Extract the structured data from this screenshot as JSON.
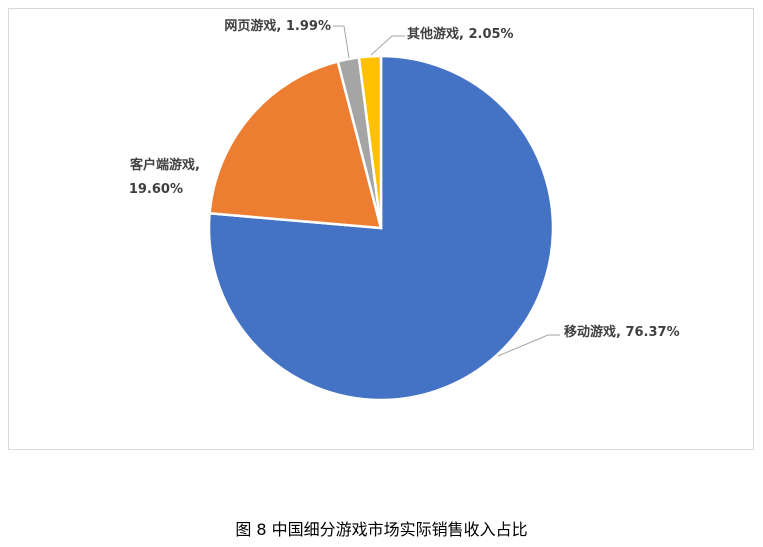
{
  "chart_data": {
    "type": "pie",
    "title": "",
    "slices": [
      {
        "label": "移动游戏",
        "value": 76.37,
        "display": "移动游戏, 76.37%",
        "color": "#4472c4"
      },
      {
        "label": "客户端游戏",
        "value": 19.6,
        "display": "客户端游戏,|19.60%",
        "color": "#ed7d31"
      },
      {
        "label": "网页游戏",
        "value": 1.99,
        "display": "网页游戏, 1.99%",
        "color": "#a5a5a5"
      },
      {
        "label": "其他游戏",
        "value": 2.05,
        "display": "其他游戏, 2.05%",
        "color": "#ffc000"
      }
    ],
    "start_angle": "12 o'clock",
    "direction": "clockwise",
    "legend": "none",
    "data_labels": "outside with leader lines"
  },
  "caption": "图 8 中国细分游戏市场实际销售收入占比"
}
